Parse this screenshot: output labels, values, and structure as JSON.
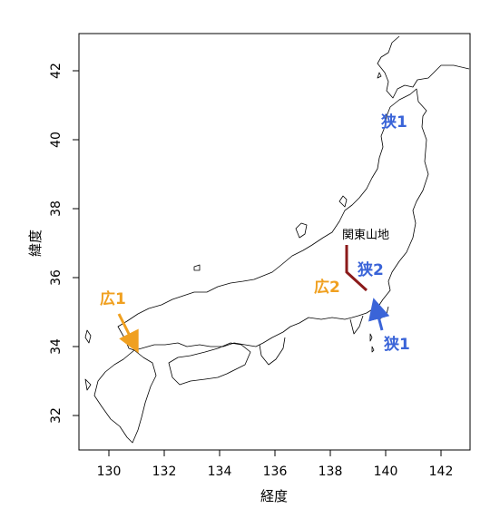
{
  "map": {
    "x_axis": {
      "label": "経度",
      "ticks": [
        "130",
        "132",
        "134",
        "136",
        "138",
        "140",
        "142"
      ]
    },
    "y_axis": {
      "label": "緯度",
      "ticks": [
        "32",
        "34",
        "36",
        "38",
        "40",
        "42"
      ]
    },
    "colors": {
      "narrow": "#3a64d8",
      "wide": "#f0a020",
      "range_line": "#8b1a1a",
      "coast": "#000000"
    },
    "annotations": {
      "narrow_1_north": "狭1",
      "narrow_2": "狭2",
      "narrow_1_south": "狭1",
      "wide_1": "広1",
      "wide_2": "広2",
      "kanto_mountains": "関東山地"
    }
  }
}
